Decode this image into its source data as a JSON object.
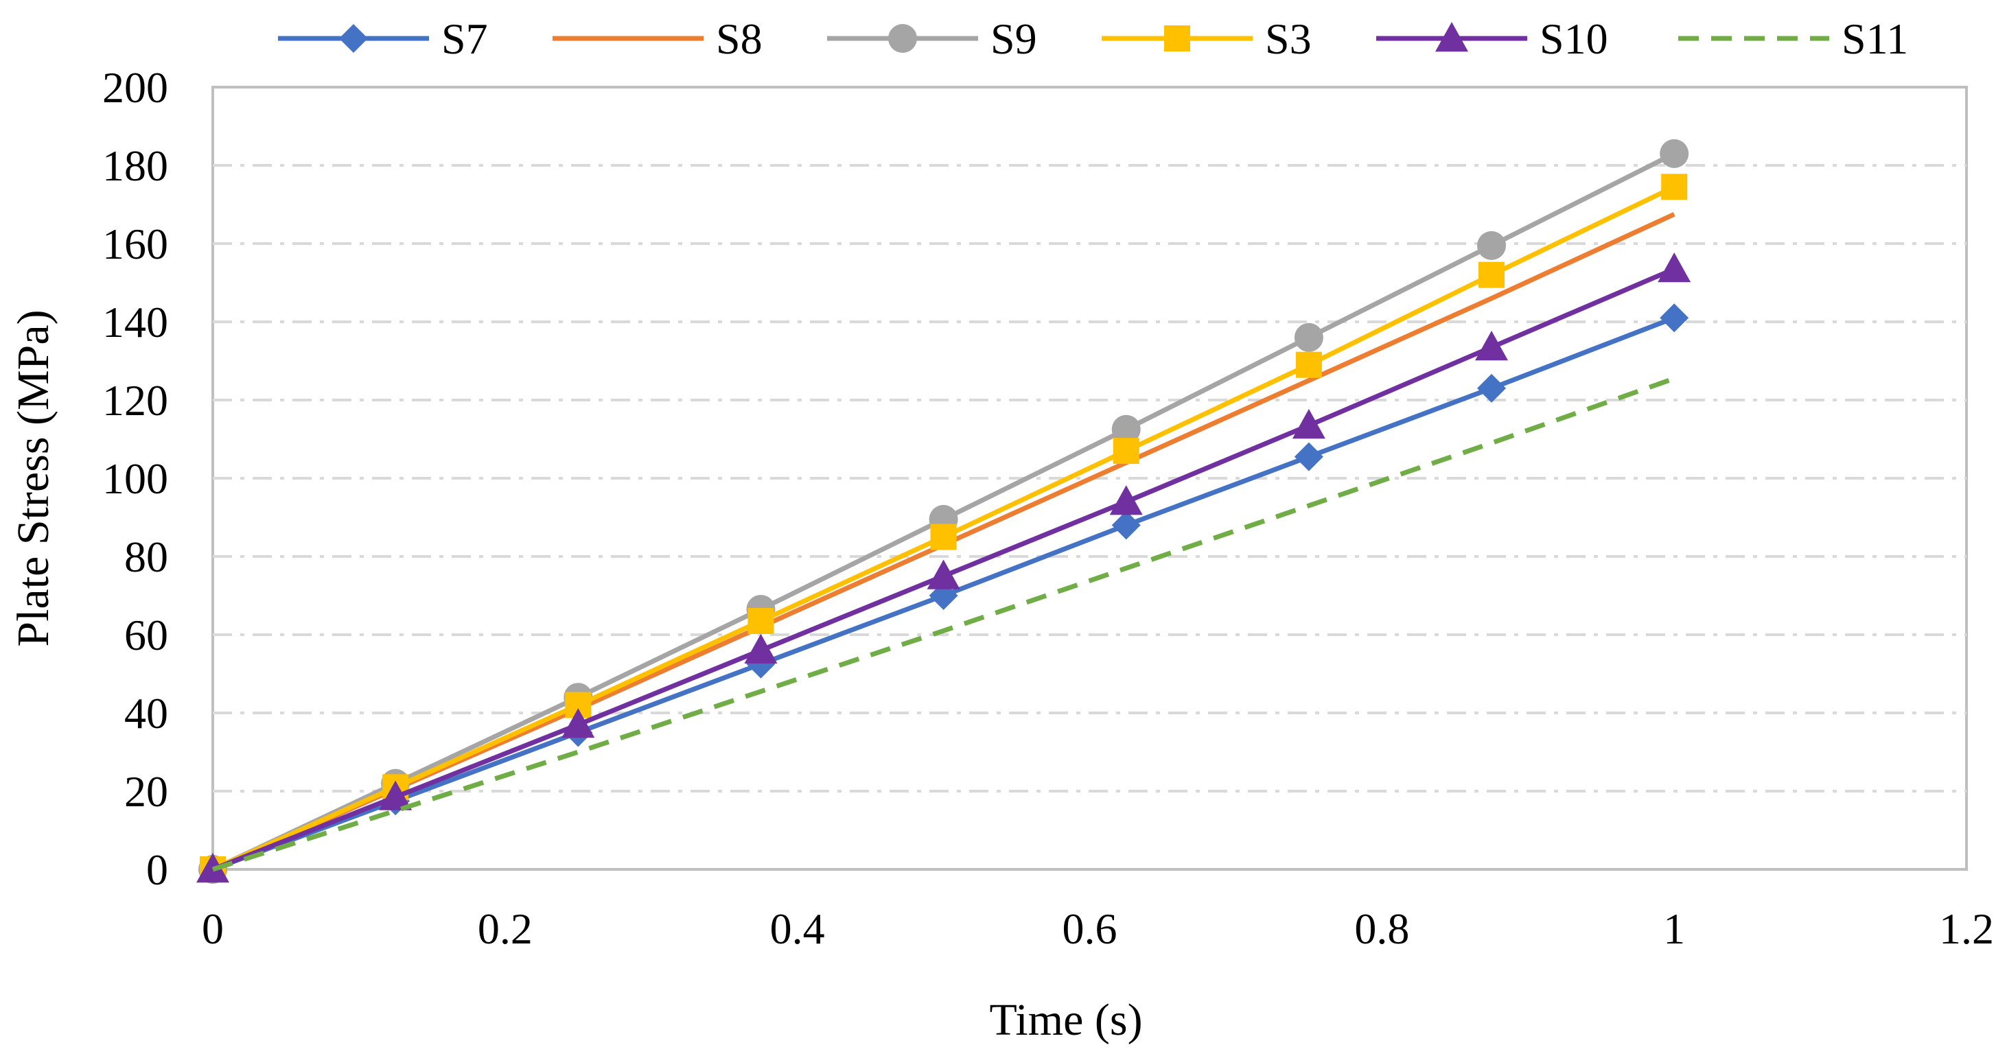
{
  "chart_data": {
    "type": "line",
    "xlabel": "Time (s)",
    "ylabel": "Plate Stress (MPa)",
    "xlim": [
      0,
      1.2
    ],
    "ylim": [
      0,
      200
    ],
    "xticks": [
      0,
      0.2,
      0.4,
      0.6,
      0.8,
      1,
      1.2
    ],
    "xtick_labels": [
      "0",
      "0.2",
      "0.4",
      "0.6",
      "0.8",
      "1",
      "1.2"
    ],
    "yticks": [
      0,
      20,
      40,
      60,
      80,
      100,
      120,
      140,
      160,
      180,
      200
    ],
    "ytick_labels": [
      "0",
      "20",
      "40",
      "60",
      "80",
      "100",
      "120",
      "140",
      "160",
      "180",
      "200"
    ],
    "grid": "horizontal dash-dot",
    "legend_position": "top",
    "x": [
      0,
      0.125,
      0.25,
      0.375,
      0.5,
      0.625,
      0.75,
      0.875,
      1
    ],
    "series": [
      {
        "name": "S7",
        "color": "#4472C4",
        "marker": "diamond",
        "dash": "solid",
        "values": [
          0,
          17.5,
          35,
          52.5,
          70,
          88,
          105.5,
          123,
          141
        ]
      },
      {
        "name": "S8",
        "color": "#ED7D31",
        "marker": "none",
        "dash": "solid",
        "values": [
          0,
          20.5,
          41,
          62,
          83,
          104,
          125,
          146,
          167.5
        ]
      },
      {
        "name": "S9",
        "color": "#A5A5A5",
        "marker": "circle",
        "dash": "solid",
        "values": [
          0,
          22,
          44,
          66.5,
          89.5,
          112.5,
          136,
          159.5,
          183
        ]
      },
      {
        "name": "S3",
        "color": "#FFC000",
        "marker": "square",
        "dash": "solid",
        "values": [
          0,
          21,
          42,
          63.5,
          85,
          107,
          129,
          152,
          174.5
        ]
      },
      {
        "name": "S10",
        "color": "#7030A0",
        "marker": "triangle",
        "dash": "solid",
        "values": [
          0,
          18.5,
          37,
          56,
          75,
          94,
          113.5,
          133.5,
          153.5
        ]
      },
      {
        "name": "S11",
        "color": "#70AD47",
        "marker": "none",
        "dash": "dashed",
        "values": [
          0,
          15,
          30,
          45.5,
          61,
          77,
          93,
          109,
          125.5
        ]
      }
    ]
  }
}
